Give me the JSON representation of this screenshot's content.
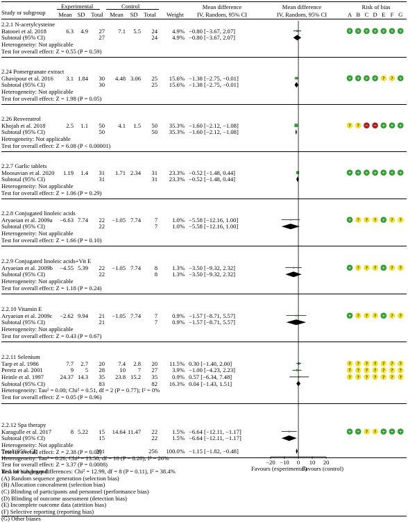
{
  "header": {
    "study": "Study or subgroup",
    "experimental": "Experimental",
    "control": "Control",
    "mean": "Mean",
    "sd": "SD",
    "total": "Total",
    "weight": "Weight",
    "md1": "Mean difference",
    "md2": "IV, Random, 95% CI",
    "md3": "Mean difference",
    "md4": "IV, Random, 95% CI",
    "rob": "Risk of bias",
    "rob_letters": [
      "A",
      "B",
      "C",
      "D",
      "E",
      "F",
      "G"
    ]
  },
  "chart_data": {
    "type": "forest",
    "x_axis": {
      "min": -20,
      "max": 20,
      "ticks": [
        -20,
        -10,
        0,
        10,
        20
      ],
      "tick_labels": [
        "−20",
        "−10",
        "0",
        "10",
        "20"
      ]
    },
    "favours_left": "Favours (experimental)",
    "favours_right": "Favours (control)",
    "groups": [
      {
        "title": "2.2.1 N-acetylcysteine",
        "studies": [
          {
            "name": "Batooei et al. 2018",
            "e_mean": "6.3",
            "e_sd": "4.9",
            "e_total": "27",
            "c_mean": "7.1",
            "c_sd": "5.5",
            "c_total": "24",
            "weight": "4.9%",
            "ci_text": "−0.80 [−3.67, 2.07]",
            "md": -0.8,
            "lo": -3.67,
            "hi": 2.07,
            "w": 4.9,
            "rob": [
              "+",
              "+",
              "+",
              "+",
              "+",
              "+",
              "+"
            ]
          }
        ],
        "subtotal": {
          "label": "Subtotal (95% CI)",
          "e_total": "27",
          "c_total": "24",
          "weight": "4.9%",
          "ci_text": "−0.80 [−3.67, 2.07]",
          "md": -0.8,
          "lo": -3.67,
          "hi": 2.07
        },
        "notes": [
          "Heterogeneity: Not applicable",
          "Test for overall effect: Z = 0.55 (P = 0.59)"
        ]
      },
      {
        "title": "2.24 Pomergranate extract",
        "studies": [
          {
            "name": "Ghavipour et al. 2016",
            "e_mean": "3.1",
            "e_sd": "1.84",
            "e_total": "30",
            "c_mean": "4.48",
            "c_sd": "3.06",
            "c_total": "25",
            "weight": "15.6%",
            "ci_text": "−1.38 [−2.75, −0.01]",
            "md": -1.38,
            "lo": -2.75,
            "hi": -0.01,
            "w": 15.6,
            "rob": [
              "+",
              "+",
              "+",
              "+",
              "?",
              "?",
              "+"
            ]
          }
        ],
        "subtotal": {
          "label": "Subtotal (95% CI)",
          "e_total": "30",
          "c_total": "25",
          "weight": "15.6%",
          "ci_text": "−1.38 [−2.75, −0.01]",
          "md": -1.38,
          "lo": -2.75,
          "hi": -0.01
        },
        "notes": [
          "Heterogeneity: Not applicable",
          "Test for overall effect: Z = 1.98 (P = 0.05)"
        ]
      },
      {
        "title": "2.26 Resveratrol",
        "studies": [
          {
            "name": "Khojah et al. 2018",
            "e_mean": "2.5",
            "e_sd": "1.1",
            "e_total": "50",
            "c_mean": "4.1",
            "c_sd": "1.5",
            "c_total": "50",
            "weight": "35.3%",
            "ci_text": "−1.60 [−2.12, −1.08]",
            "md": -1.6,
            "lo": -2.12,
            "hi": -1.08,
            "w": 35.3,
            "rob": [
              "?",
              "?",
              "−",
              "−",
              "+",
              "+",
              "+"
            ]
          }
        ],
        "subtotal": {
          "label": "Subtotal (95% CI)",
          "e_total": "50",
          "c_total": "50",
          "weight": "35.3%",
          "ci_text": "−1.60 [−2.12, −1.08]",
          "md": -1.6,
          "lo": -2.12,
          "hi": -1.08
        },
        "notes": [
          "Hetrogeneity: Not applicable",
          "Test for overall effect: Z = 6.08 (P < 0.00001)"
        ]
      },
      {
        "title": "2.2.7 Garlic tablets",
        "studies": [
          {
            "name": "Moosavian et al. 2020",
            "e_mean": "1.19",
            "e_sd": "1.4",
            "e_total": "31",
            "c_mean": "1.71",
            "c_sd": "2.34",
            "c_total": "31",
            "weight": "23.3%",
            "ci_text": "−0.52 [−1.48, 0.44]",
            "md": -0.52,
            "lo": -1.48,
            "hi": 0.44,
            "w": 23.3,
            "rob": [
              "+",
              "+",
              "+",
              "+",
              "+",
              "+",
              "+"
            ]
          }
        ],
        "subtotal": {
          "label": "Subtotal (95% CI)",
          "e_total": "31",
          "c_total": "31",
          "weight": "23.3%",
          "ci_text": "−0.52 [−1.48, 0.44]",
          "md": -0.52,
          "lo": -1.48,
          "hi": 0.44
        },
        "notes": [
          "Heterogeneity: Not applicable",
          "Test for overall effect: Z = 1.06 (P = 0.29)"
        ]
      },
      {
        "title": "2.2.8 Conjugated linoleic acids",
        "studies": [
          {
            "name": "Aryaeian et al. 2009a",
            "e_mean": "−6.63",
            "e_sd": "7.74",
            "e_total": "22",
            "c_mean": "−1.05",
            "c_sd": "7.74",
            "c_total": "7",
            "weight": "1.0%",
            "ci_text": "−5.58 [−12.16, 1.00]",
            "md": -5.58,
            "lo": -12.16,
            "hi": 1.0,
            "w": 1.0,
            "rob": [
              "+",
              "?",
              "?",
              "?",
              "+",
              "?",
              "?"
            ]
          }
        ],
        "subtotal": {
          "label": "Subtotal (95% CI)",
          "e_total": "22",
          "c_total": "7",
          "weight": "1.0%",
          "ci_text": "−5.58 [−12.16, 1.00]",
          "md": -5.58,
          "lo": -12.16,
          "hi": 1.0
        },
        "notes": [
          "Heterogeneity: Not applicable",
          "Test for overall effect: Z = 1.66 (P = 0.10)"
        ]
      },
      {
        "title": "2.2.9 Conjugated linoleic acids+Vit E",
        "studies": [
          {
            "name": "Aryaeian et al. 2009b",
            "e_mean": "−4.55",
            "e_sd": "5.39",
            "e_total": "22",
            "c_mean": "−1.05",
            "c_sd": "7.74",
            "c_total": "8",
            "weight": "1.3%",
            "ci_text": "−3.50 [−9.32, 2.32]",
            "md": -3.5,
            "lo": -9.32,
            "hi": 2.32,
            "w": 1.3,
            "rob": [
              "+",
              "?",
              "?",
              "?",
              "+",
              "?",
              "?"
            ]
          }
        ],
        "subtotal": {
          "label": "Subtotal (95% CI)",
          "e_total": "22",
          "c_total": "8",
          "weight": "1.3%",
          "ci_text": "−3.50 [−9.32, 2.32]",
          "md": -3.5,
          "lo": -9.32,
          "hi": 2.32
        },
        "notes": [
          "Heterogeneity: Not applicable",
          "Test for overall effect: Z = 1.18 (P = 0.24)"
        ]
      },
      {
        "title": "2.2.10 Vitamin E",
        "studies": [
          {
            "name": "Aryaeian et al. 2009c",
            "e_mean": "−2.62",
            "e_sd": "9.94",
            "e_total": "21",
            "c_mean": "−1.05",
            "c_sd": "7.74",
            "c_total": "7",
            "weight": "0.9%",
            "ci_text": "−1.57 [−8.71, 5.57]",
            "md": -1.57,
            "lo": -8.71,
            "hi": 5.57,
            "w": 0.9,
            "rob": [
              "+",
              "?",
              "?",
              "?",
              "+",
              "?",
              "?"
            ]
          }
        ],
        "subtotal": {
          "label": "Subtotal (95% CI)",
          "e_total": "21",
          "c_total": "7",
          "weight": "0.9%",
          "ci_text": "−1.57 [−8.71, 5.57]",
          "md": -1.57,
          "lo": -8.71,
          "hi": 5.57
        },
        "notes": [
          "Heterogeneity: Not applicable",
          "Test for overall effect: Z = 0.43 (P = 0.67)"
        ]
      },
      {
        "title": "2.2.11 Selenium",
        "studies": [
          {
            "name": "Tarp et al. 1986",
            "e_mean": "7.7",
            "e_sd": "2.7",
            "e_total": "20",
            "c_mean": "7.4",
            "c_sd": "2.8",
            "c_total": "20",
            "weight": "11.5%",
            "ci_text": "0.30 [−1.40, 2.00]",
            "md": 0.3,
            "lo": -1.4,
            "hi": 2.0,
            "w": 11.5,
            "rob": [
              "?",
              "?",
              "?",
              "?",
              "?",
              "?",
              "?"
            ]
          },
          {
            "name": "Peretz et al. 2001",
            "e_mean": "9",
            "e_sd": "5",
            "e_total": "28",
            "c_mean": "10",
            "c_sd": "7",
            "c_total": "27",
            "weight": "3.9%",
            "ci_text": "−1.00 [−4.23, 2.23]",
            "md": -1.0,
            "lo": -4.23,
            "hi": 2.23,
            "w": 3.9,
            "rob": [
              "?",
              "?",
              "?",
              "?",
              "?",
              "?",
              "?"
            ]
          },
          {
            "name": "Heinle et al. 1997",
            "e_mean": "24.37",
            "e_sd": "14.3",
            "e_total": "35",
            "c_mean": "23.8",
            "c_sd": "15.2",
            "c_total": "35",
            "weight": "0.9%",
            "ci_text": "0.57 [−6.34, 7.48]",
            "md": 0.57,
            "lo": -6.34,
            "hi": 7.48,
            "w": 0.9,
            "rob": [
              "?",
              "?",
              "?",
              "?",
              "?",
              "?",
              "?"
            ]
          }
        ],
        "subtotal": {
          "label": "Subtotal (95% CI)",
          "e_total": "83",
          "c_total": "82",
          "weight": "16.3%",
          "ci_text": "0.04 [−1.43, 1.51]",
          "md": 0.04,
          "lo": -1.43,
          "hi": 1.51
        },
        "notes": [
          "Heterogeneity: Tau² = 0.00; Chi² = 0.51, df = 2 (P = 0.77); I² = 0%",
          "Test for overall effect: Z = 0.05 (P = 0.96)"
        ]
      },
      {
        "title": "2.2.12 Spa therapy",
        "studies": [
          {
            "name": "Karagulle et al. 2017",
            "e_mean": "8",
            "e_sd": "5.22",
            "e_total": "15",
            "c_mean": "14.64",
            "c_sd": "11.47",
            "c_total": "22",
            "weight": "1.5%",
            "ci_text": "−6.64 [−12.11, −1.17]",
            "md": -6.64,
            "lo": -12.11,
            "hi": -1.17,
            "w": 1.5,
            "rob": [
              "+",
              "+",
              "?",
              "?",
              "+",
              "+",
              "+"
            ]
          }
        ],
        "subtotal": {
          "label": "Subtotal (95% CI)",
          "e_total": "15",
          "c_total": "22",
          "weight": "1.5%",
          "ci_text": "−6.64 [−12.11, −1.17]",
          "md": -6.64,
          "lo": -12.11,
          "hi": -1.17
        },
        "notes": [
          "Heterogeneity: Not applicable",
          "Test for overall effect: Z = 2.38 (P = 0.02)"
        ]
      }
    ],
    "total": {
      "label": "Total (95% CI)",
      "e_total": "301",
      "c_total": "256",
      "weight": "100.0%",
      "ci_text": "−1.15 [−1.82, −0.48]",
      "md": -1.15,
      "lo": -1.82,
      "hi": -0.48
    },
    "footer_notes": [
      "Heterogeneity: Tau² = 0.26; Chi² = 13.50, df = 10 (P = 0.20); I² = 26%",
      "Test for overall effect: Z = 3.37 (P = 0.0008)",
      "Test for subgroup differences: Chi² = 12.99, df = 8 (P = 0.11), I² = 38.4%"
    ]
  },
  "legend": {
    "title": "Risk of bias legend",
    "items": [
      "(A) Random sequence generation (selection bias)",
      "(B) Allocation concealment (selection bias)",
      "(C) Blinding of participants and personnel (performance bias)",
      "(D) Blinding of outcome assessment (detection bias)",
      "(E) Incomplete outcome data (attrition bias)",
      "(F) Selective reporting (reporting bias)",
      "(G) Other biases"
    ]
  },
  "colors": {
    "low": "#2e9e2e",
    "unclear": "#f2e22e",
    "high": "#b01a1a",
    "marker": "#2e9e2e"
  }
}
